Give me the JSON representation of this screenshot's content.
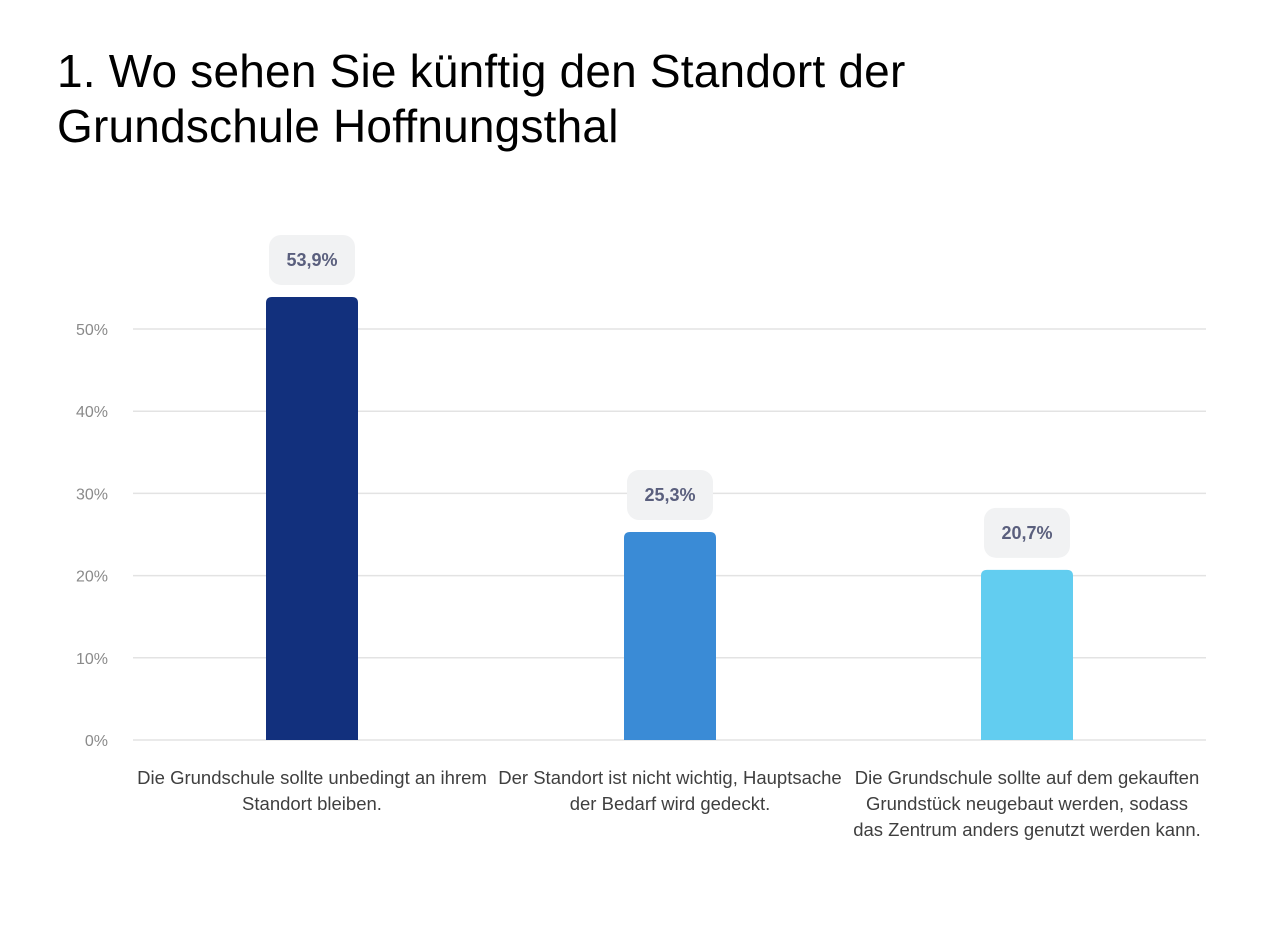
{
  "title": "1. Wo sehen Sie künftig den Standort der Grundschule Hoffnungsthal",
  "chart_data": {
    "type": "bar",
    "title": "1. Wo sehen Sie künftig den Standort der Grundschule Hoffnungsthal",
    "xlabel": "",
    "ylabel": "",
    "ylim": [
      0,
      55
    ],
    "grid": true,
    "yticks": [
      0,
      10,
      20,
      30,
      40,
      50
    ],
    "ytick_labels": [
      "0%",
      "10%",
      "20%",
      "30%",
      "40%",
      "50%"
    ],
    "categories": [
      "Die Grundschule sollte unbedingt an ihrem Standort bleiben.",
      "Der Standort ist nicht wichtig, Hauptsache der Bedarf wird gedeckt.",
      "Die Grundschule sollte auf dem gekauften Grundstück neugebaut werden, sodass das Zentrum anders genutzt werden kann."
    ],
    "values": [
      53.9,
      25.3,
      20.7
    ],
    "value_labels": [
      "53,9%",
      "25,3%",
      "20,7%"
    ],
    "colors": [
      "#12307d",
      "#3a8bd6",
      "#62cdf0"
    ]
  }
}
